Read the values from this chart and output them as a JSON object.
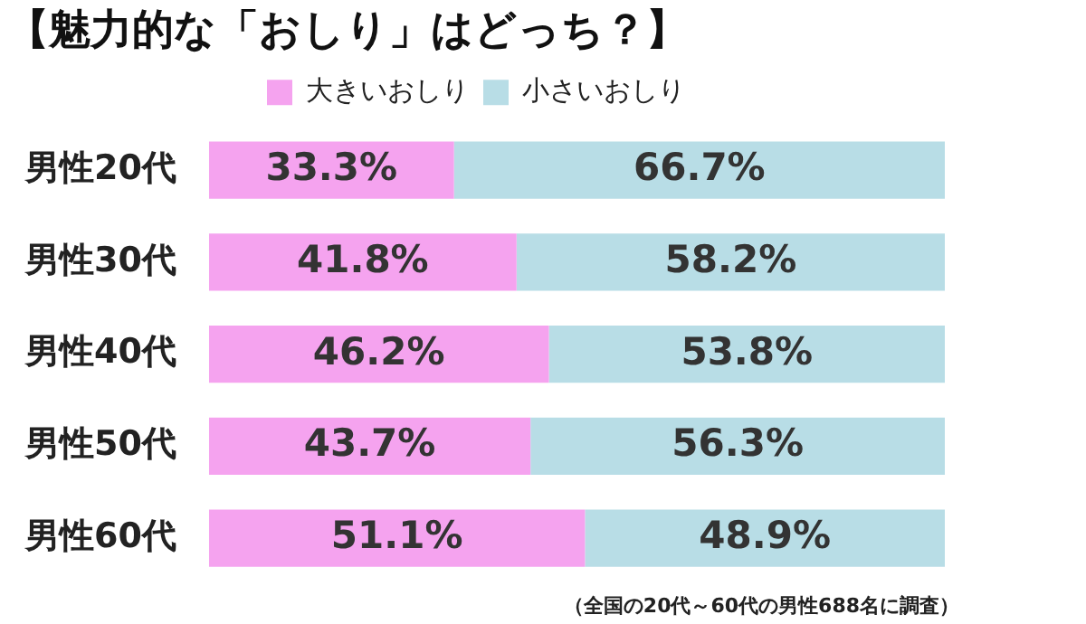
{
  "chart_data": {
    "type": "bar",
    "orientation": "horizontal",
    "stacked": true,
    "title": "【魅力的な「おしり」はどっち？】",
    "categories": [
      "男性20代",
      "男性30代",
      "男性40代",
      "男性50代",
      "男性60代"
    ],
    "series": [
      {
        "name": "大きいおしり",
        "color": "#f5a3ef",
        "values": [
          33.3,
          41.8,
          46.2,
          43.7,
          51.1
        ],
        "value_labels": [
          "33.3%",
          "41.8%",
          "46.2%",
          "43.7%",
          "51.1%"
        ]
      },
      {
        "name": "小さいおしり",
        "color": "#b8dde6",
        "values": [
          66.7,
          58.2,
          53.8,
          56.3,
          48.9
        ],
        "value_labels": [
          "66.7%",
          "58.2%",
          "53.8%",
          "56.3%",
          "48.9%"
        ]
      }
    ],
    "xlim": [
      0,
      100
    ],
    "tick_labels": "y",
    "legend": "top",
    "annotations": [
      "（全国の20代～60代の男性688名に調査）"
    ]
  }
}
